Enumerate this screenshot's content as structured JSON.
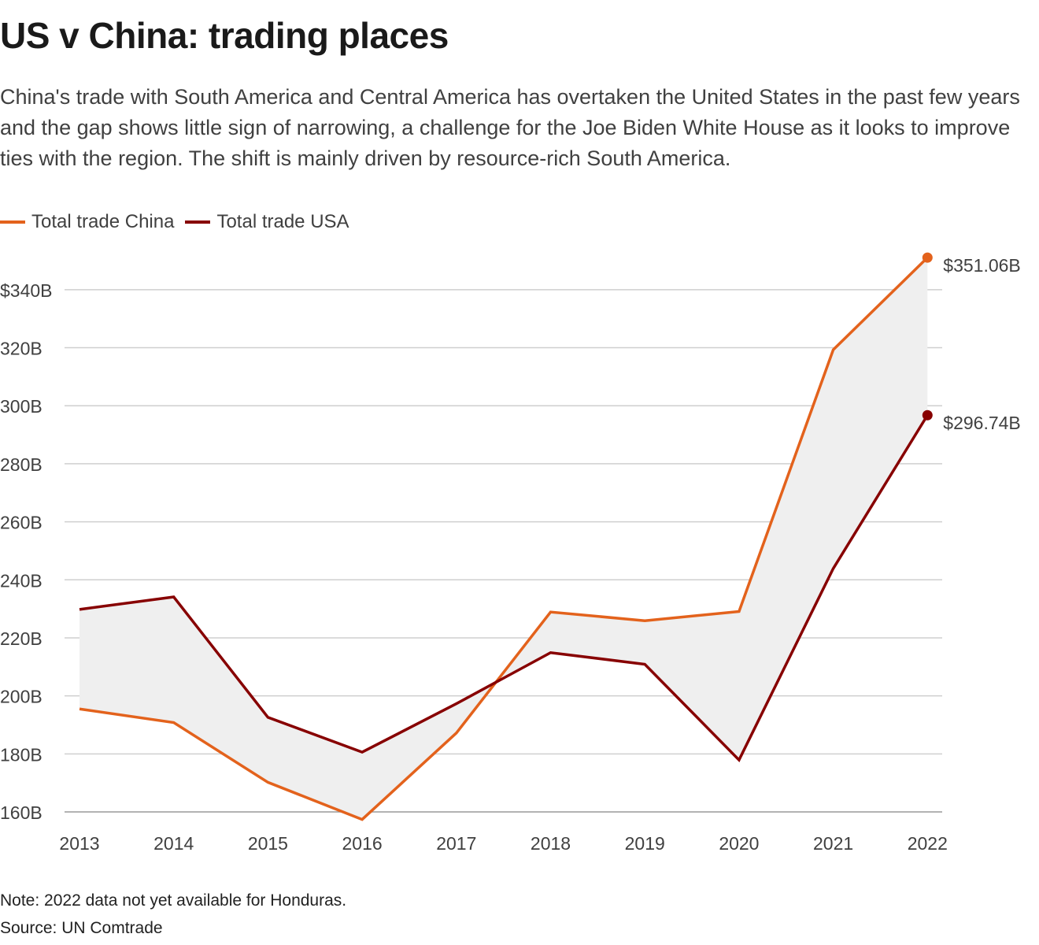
{
  "header": {
    "title": "US v China: trading places",
    "subtitle": "China's trade with South America and Central America has overtaken the United States in the past few years and the gap shows little sign of narrowing, a challenge for the Joe Biden White House as it looks to improve ties with the region. The shift is mainly driven by resource-rich South America."
  },
  "footer": {
    "note": "Note: 2022 data not yet available for Honduras.",
    "source": "Source: UN Comtrade"
  },
  "chart_data": {
    "type": "line",
    "title": "US v China: trading places",
    "x": [
      "2013",
      "2014",
      "2015",
      "2016",
      "2017",
      "2018",
      "2019",
      "2020",
      "2021",
      "2022"
    ],
    "xlabel": "",
    "ylabel": "",
    "ylim": [
      160,
      350
    ],
    "yticks": [
      160,
      180,
      200,
      220,
      240,
      260,
      280,
      300,
      320,
      340
    ],
    "ytick_labels": [
      "160B",
      "180B",
      "200B",
      "220B",
      "240B",
      "260B",
      "280B",
      "300B",
      "320B",
      "$340B"
    ],
    "grid": true,
    "legend_position": "top-left",
    "gap_fill_color": "#efefef",
    "series": [
      {
        "name": "Total trade China",
        "color": "#e3621c",
        "values": [
          195.5,
          190.8,
          170.2,
          157.4,
          187.2,
          228.9,
          225.9,
          229.1,
          319.3,
          351.06
        ],
        "end_label": "$351.06B"
      },
      {
        "name": "Total trade USA",
        "color": "#870000",
        "values": [
          229.8,
          234.1,
          192.6,
          180.6,
          197.3,
          214.9,
          210.9,
          177.9,
          243.9,
          296.74
        ],
        "end_label": "$296.74B"
      }
    ]
  }
}
